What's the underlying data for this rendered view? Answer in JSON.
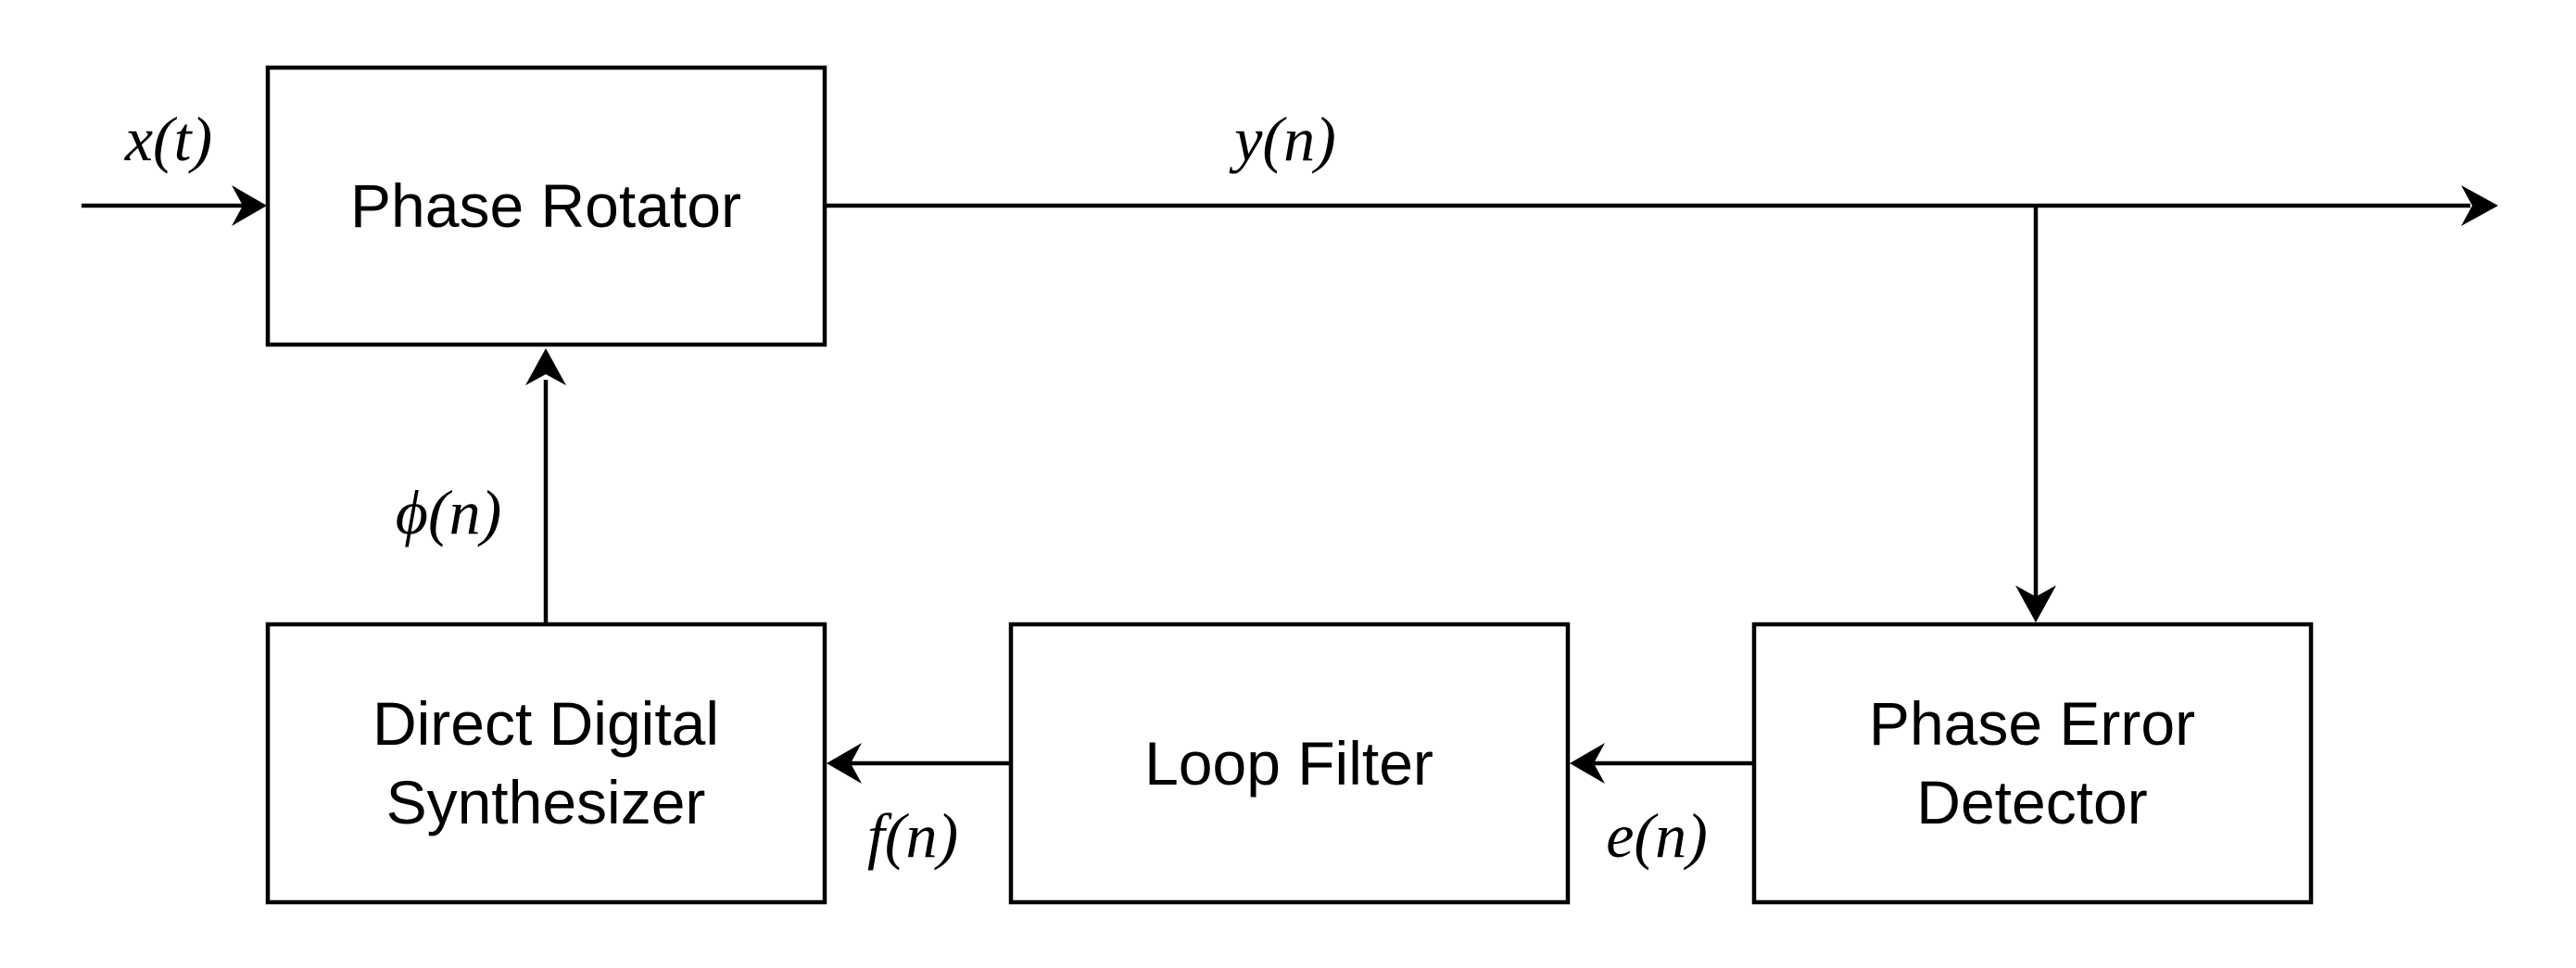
{
  "blocks": {
    "phase_rotator": "Phase Rotator",
    "dds": [
      "Direct Digital",
      "Synthesizer"
    ],
    "loop_filter": "Loop Filter",
    "phase_error_detector": [
      "Phase Error",
      "Detector"
    ]
  },
  "signals": {
    "input": "x(t)",
    "output": "y(n)",
    "phase": "ϕ(n)",
    "frequency": "f(n)",
    "error": "e(n)"
  },
  "colors": {
    "stroke": "#000000",
    "background": "#ffffff"
  }
}
